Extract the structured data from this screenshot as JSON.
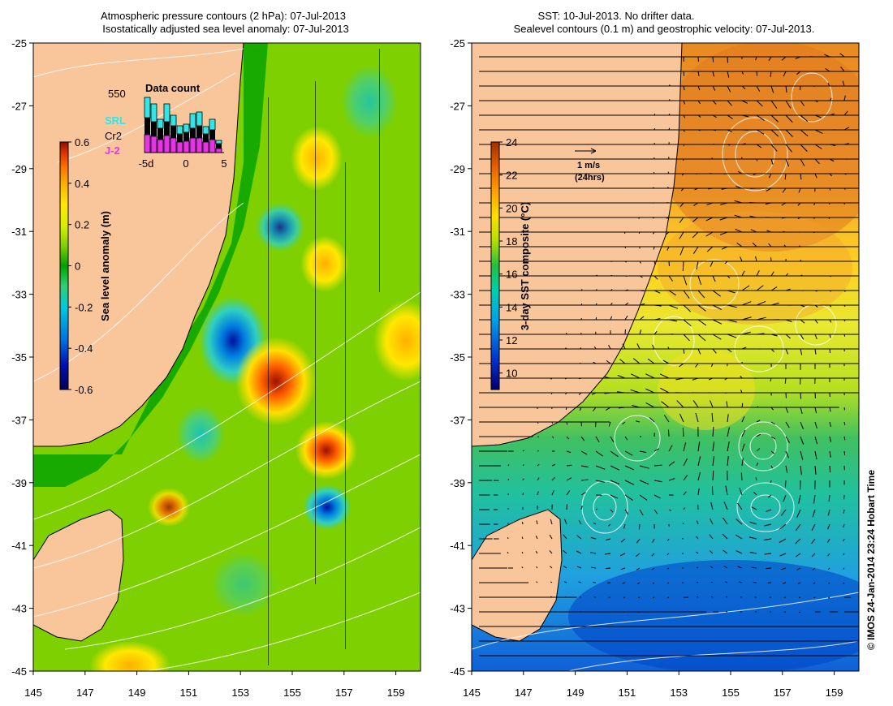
{
  "left_panel": {
    "title_line1": "Atmospheric pressure contours (2 hPa): 07-Jul-2013",
    "title_line2": "Isostatically adjusted sea level anomaly: 07-Jul-2013",
    "y_ticks": [
      "-25",
      "-27",
      "-29",
      "-31",
      "-33",
      "-35",
      "-37",
      "-39",
      "-41",
      "-43",
      "-45"
    ],
    "x_ticks": [
      "145",
      "147",
      "149",
      "151",
      "153",
      "155",
      "157",
      "159"
    ],
    "colorbar": {
      "label": "Sea level anomaly (m)",
      "ticks": [
        "0.6",
        "0.4",
        "0.2",
        "0",
        "-0.2",
        "-0.4",
        "-0.6"
      ],
      "range": [
        -0.6,
        0.6
      ]
    },
    "inset": {
      "title": "Data count",
      "max_label": "550",
      "x_ticks": [
        "-5d",
        "0",
        "5"
      ],
      "legend": [
        {
          "label": "SRL",
          "color": "#33e6e6"
        },
        {
          "label": "Cr2",
          "color": "#000000"
        },
        {
          "label": "J-2",
          "color": "#e633e6"
        }
      ]
    }
  },
  "right_panel": {
    "title_line1": "SST: 10-Jul-2013. No drifter data.",
    "title_line2": "Sealevel contours (0.1 m) and geostrophic velocity: 07-Jul-2013.",
    "y_ticks": [
      "-25",
      "-27",
      "-29",
      "-31",
      "-33",
      "-35",
      "-37",
      "-39",
      "-41",
      "-43",
      "-45"
    ],
    "x_ticks": [
      "145",
      "147",
      "149",
      "151",
      "153",
      "155",
      "157",
      "159"
    ],
    "colorbar": {
      "label": "3-day SST composite (°C)",
      "ticks": [
        "24",
        "22",
        "20",
        "18",
        "16",
        "14",
        "12",
        "10"
      ],
      "range": [
        9,
        24
      ]
    },
    "velocity_scale": {
      "label": "1 m/s",
      "sublabel": "(24hrs)"
    }
  },
  "copyright": "© IMOS 24-Jan-2014 23:24 Hobart Time",
  "colors": {
    "land": "#f9c59b",
    "sla_scale": [
      "#00005a",
      "#0010b0",
      "#0070e0",
      "#00c8e0",
      "#30d070",
      "#00a000",
      "#7ed000",
      "#d8f000",
      "#ffe800",
      "#ffb000",
      "#ff7000",
      "#d83000",
      "#8a1000"
    ],
    "sst_scale": [
      "#000070",
      "#0030d0",
      "#00a0e8",
      "#00d0b0",
      "#20c040",
      "#b0e000",
      "#ffe000",
      "#ffa000",
      "#e86000",
      "#a03000"
    ]
  }
}
